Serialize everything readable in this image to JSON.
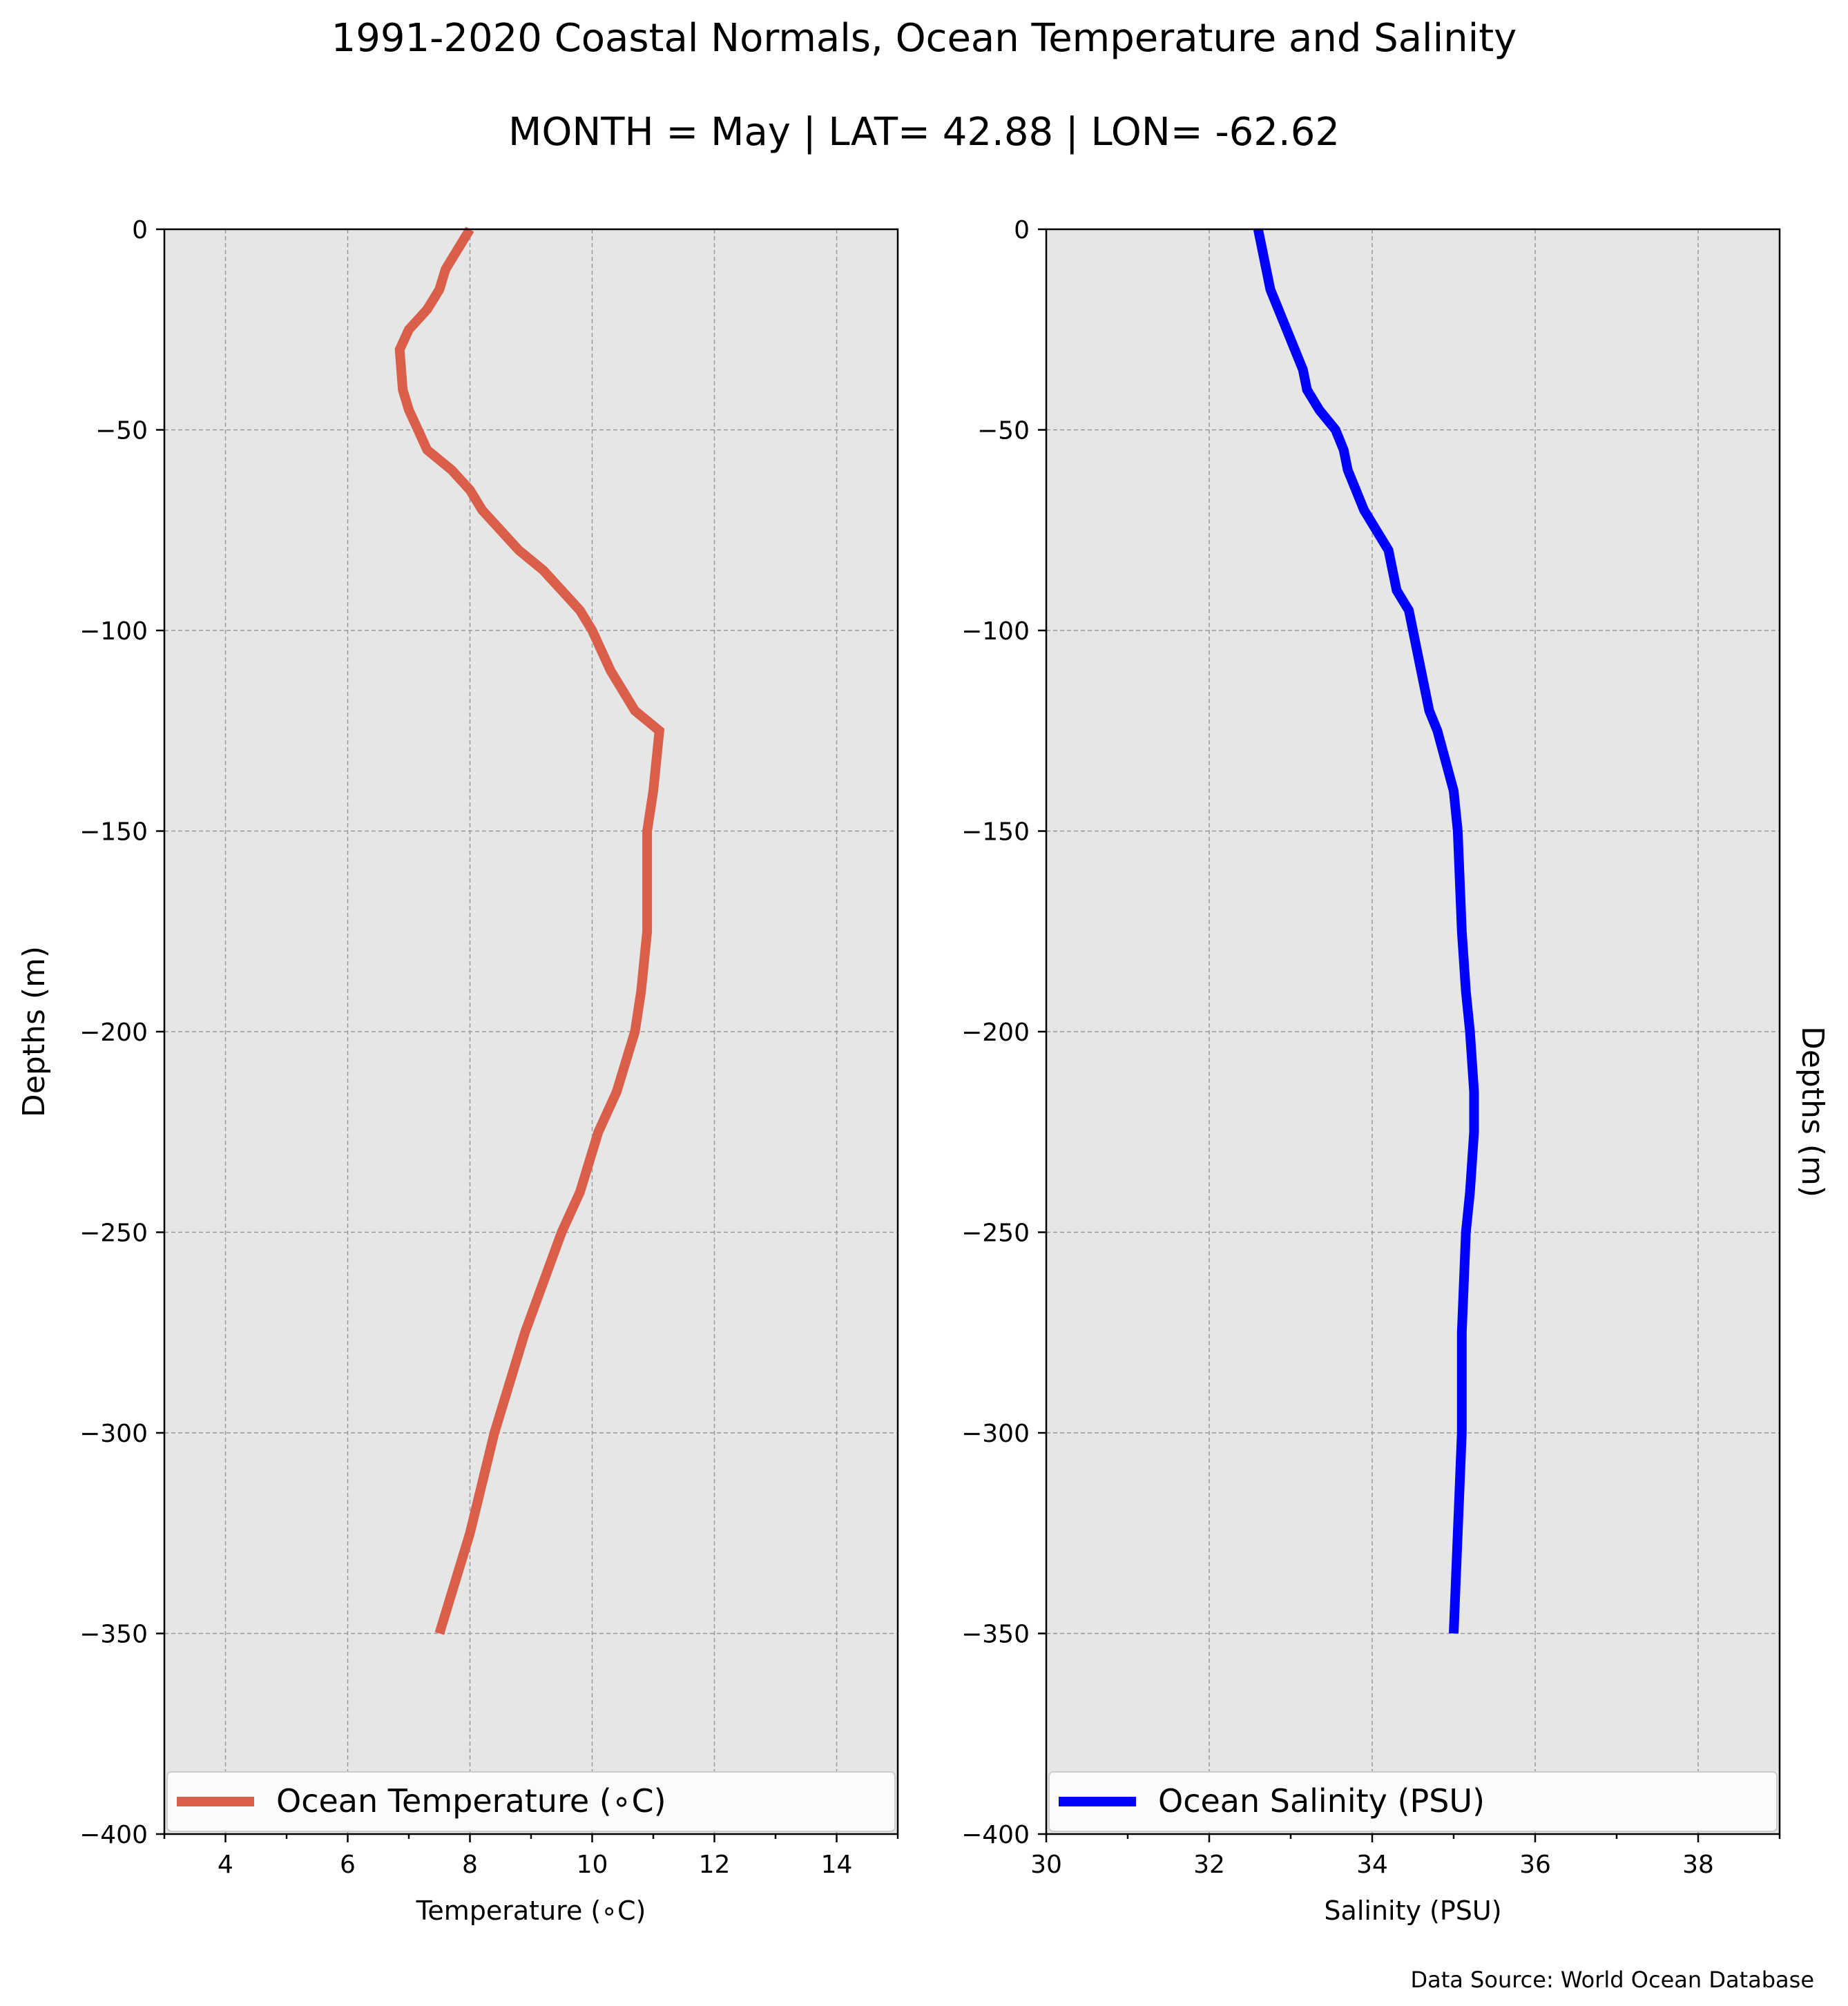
{
  "title": "1991-2020 Coastal Normals, Ocean Temperature and Salinity",
  "subtitle": "MONTH = May | LAT= 42.88 | LON= -62.62",
  "source_note": "Data Source: World Ocean Database",
  "colors": {
    "temperature": "#d95f4b",
    "salinity": "#0000ff",
    "plot_background": "#e6e6e6",
    "grid": "#999999"
  },
  "chart_data": [
    {
      "type": "line",
      "xlabel": "Temperature (∘C)",
      "ylabel": "Depths (m)",
      "xlim": [
        3,
        15
      ],
      "ylim": [
        -400,
        0
      ],
      "xticks": [
        4,
        6,
        8,
        10,
        12,
        14
      ],
      "yticks": [
        0,
        -50,
        -100,
        -150,
        -200,
        -250,
        -300,
        -350,
        -400
      ],
      "grid": true,
      "legend_position": "lower-center",
      "series": [
        {
          "name": "Ocean Temperature (∘C)",
          "color": "#d95f4b",
          "x": [
            8.0,
            7.8,
            7.6,
            7.5,
            7.3,
            7.0,
            6.85,
            6.9,
            7.0,
            7.15,
            7.3,
            7.7,
            8.0,
            8.2,
            8.5,
            8.8,
            9.2,
            9.5,
            9.8,
            10.0,
            10.3,
            10.7,
            11.1,
            11.0,
            10.9,
            10.9,
            10.9,
            10.8,
            10.7,
            10.4,
            10.1,
            9.8,
            9.5,
            8.9,
            8.4,
            8.0,
            7.5
          ],
          "y": [
            0,
            -5,
            -10,
            -15,
            -20,
            -25,
            -30,
            -40,
            -45,
            -50,
            -55,
            -60,
            -65,
            -70,
            -75,
            -80,
            -85,
            -90,
            -95,
            -100,
            -110,
            -120,
            -125,
            -140,
            -150,
            -160,
            -175,
            -190,
            -200,
            -215,
            -225,
            -240,
            -250,
            -275,
            -300,
            -325,
            -350
          ]
        }
      ]
    },
    {
      "type": "line",
      "xlabel": "Salinity (PSU)",
      "ylabel": "Depths (m)",
      "xlim": [
        30,
        39
      ],
      "ylim": [
        -400,
        0
      ],
      "xticks": [
        30,
        32,
        34,
        36,
        38
      ],
      "yticks": [
        0,
        -50,
        -100,
        -150,
        -200,
        -250,
        -300,
        -350,
        -400
      ],
      "grid": true,
      "legend_position": "lower-center",
      "series": [
        {
          "name": "Ocean Salinity (PSU)",
          "color": "#0000ff",
          "x": [
            32.6,
            32.65,
            32.7,
            32.75,
            32.85,
            32.95,
            33.05,
            33.15,
            33.2,
            33.35,
            33.55,
            33.65,
            33.7,
            33.8,
            33.9,
            34.05,
            34.2,
            34.25,
            34.3,
            34.45,
            34.5,
            34.6,
            34.7,
            34.8,
            35.0,
            35.05,
            35.1,
            35.15,
            35.2,
            35.25,
            35.25,
            35.2,
            35.15,
            35.1,
            35.1,
            35.05,
            35.0
          ],
          "y": [
            0,
            -5,
            -10,
            -15,
            -20,
            -25,
            -30,
            -35,
            -40,
            -45,
            -50,
            -55,
            -60,
            -65,
            -70,
            -75,
            -80,
            -85,
            -90,
            -95,
            -100,
            -110,
            -120,
            -125,
            -140,
            -150,
            -175,
            -190,
            -200,
            -215,
            -225,
            -240,
            -250,
            -275,
            -300,
            -325,
            -350
          ]
        }
      ]
    }
  ]
}
